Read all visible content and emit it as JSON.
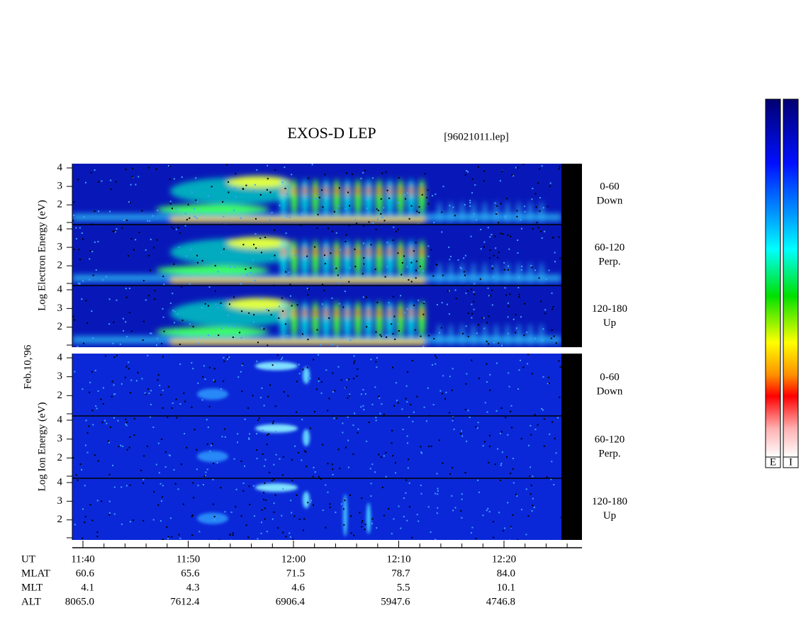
{
  "header": {
    "title": "EXOS-D LEP",
    "file": "[96021011.lep]",
    "date": "Feb.10,'96"
  },
  "groups": [
    {
      "axis_label": "Log Electron Energy (eV)",
      "panels": [
        {
          "ticks": [
            "4",
            "3",
            "2"
          ],
          "label": [
            "0-60",
            "Down"
          ]
        },
        {
          "ticks": [
            "4",
            "3",
            "2"
          ],
          "label": [
            "60-120",
            "Perp."
          ]
        },
        {
          "ticks": [
            "4",
            "3",
            "2"
          ],
          "label": [
            "120-180",
            "Up"
          ]
        }
      ]
    },
    {
      "axis_label": "Log Ion Energy (eV)",
      "panels": [
        {
          "ticks": [
            "4",
            "3",
            "2"
          ],
          "label": [
            "0-60",
            "Down"
          ]
        },
        {
          "ticks": [
            "4",
            "3",
            "2"
          ],
          "label": [
            "60-120",
            "Perp."
          ]
        },
        {
          "ticks": [
            "4",
            "3",
            "2"
          ],
          "label": [
            "120-180",
            "Up"
          ]
        }
      ]
    }
  ],
  "time_axis": {
    "name": "UT",
    "ticks": [
      "11:40",
      "11:50",
      "12:00",
      "12:10",
      "12:20"
    ]
  },
  "ephemeris": {
    "rows": [
      [
        "MLAT",
        "60.6",
        "65.6",
        "71.5",
        "78.7",
        "84.0"
      ],
      [
        "MLT",
        "4.1",
        "4.3",
        "4.6",
        "5.5",
        "10.1"
      ],
      [
        "ALT",
        "8065.0",
        "7612.4",
        "6906.4",
        "5947.6",
        "4746.8"
      ]
    ]
  },
  "colorbars": [
    "E",
    "I"
  ]
}
